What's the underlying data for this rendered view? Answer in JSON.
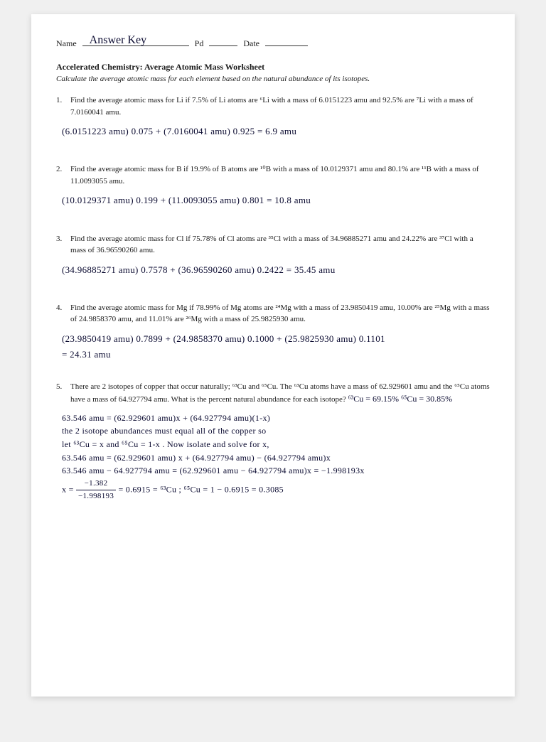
{
  "header": {
    "name_label": "Name",
    "name_value": "Answer Key",
    "pd_label": "Pd",
    "pd_value": "",
    "date_label": "Date",
    "date_value": ""
  },
  "title": "Accelerated Chemistry: Average Atomic Mass Worksheet",
  "instructions": "Calculate the average atomic mass for each element based on the natural abundance of its isotopes.",
  "q1": {
    "num": "1.",
    "text": "Find the average atomic mass for Li if 7.5% of Li atoms are ⁶Li with a mass of 6.0151223 amu and 92.5% are ⁷Li with a mass of 7.0160041 amu.",
    "answer": "(6.0151223 amu) 0.075 + (7.0160041 amu) 0.925 = 6.9 amu"
  },
  "q2": {
    "num": "2.",
    "text": "Find the average atomic mass for B if 19.9% of B atoms are ¹⁰B with a mass of 10.0129371 amu and 80.1% are ¹¹B with a mass of 11.0093055 amu.",
    "answer": "(10.0129371 amu) 0.199 + (11.0093055 amu) 0.801 = 10.8 amu"
  },
  "q3": {
    "num": "3.",
    "text": "Find the average atomic mass for Cl if 75.78% of Cl atoms are ³⁵Cl with a mass of 34.96885271 amu and 24.22% are ³⁷Cl with a mass of 36.96590260 amu.",
    "answer": "(34.96885271 amu) 0.7578 + (36.96590260 amu) 0.2422 = 35.45 amu"
  },
  "q4": {
    "num": "4.",
    "text": "Find the average atomic mass for Mg if 78.99% of Mg atoms are ²⁴Mg with a mass of 23.9850419 amu, 10.00% are ²⁵Mg with a mass of 24.9858370 amu, and 11.01% are ²⁶Mg with a mass of 25.9825930 amu.",
    "answer_l1": "(23.9850419 amu) 0.7899 + (24.9858370 amu) 0.1000 + (25.9825930 amu) 0.1101",
    "answer_l2": "= 24.31 amu"
  },
  "q5": {
    "num": "5.",
    "text_a": "There are 2 isotopes of copper that occur naturally; ⁶³Cu and ⁶⁵Cu. The ⁶³Cu atoms have a mass of 62.929601 amu and the ⁶⁵Cu atoms have a mass of 64.927794 amu. What is the percent natural abundance for each isotope?",
    "inline_hand": "  ⁶³Cu = 69.15%    ⁶⁵Cu = 30.85%",
    "l1": "63.546 amu = (62.929601 amu)x + (64.927794 amu)(1-x)",
    "l2": "the 2 isotope abundances must equal all of the copper so",
    "l3": "let  ⁶³Cu = x  and  ⁶⁵Cu = 1-x .  Now isolate and solve for x,",
    "l4": "63.546 amu = (62.929601 amu) x + (64.927794 amu) − (64.927794 amu)x",
    "l5": "63.546 amu − 64.927794 amu = (62.929601 amu − 64.927794 amu)x = −1.998193x",
    "l6_pre": "x = ",
    "l6_top": "−1.382",
    "l6_bot": "−1.998193",
    "l6_post": " = 0.6915 = ⁶³Cu ;   ⁶⁵Cu = 1 − 0.6915 = 0.3085"
  },
  "colors": {
    "page_bg": "#ffffff",
    "body_bg": "#f0f0f0",
    "print_text": "#1a1a1a",
    "handwriting": "#0a0a30"
  }
}
